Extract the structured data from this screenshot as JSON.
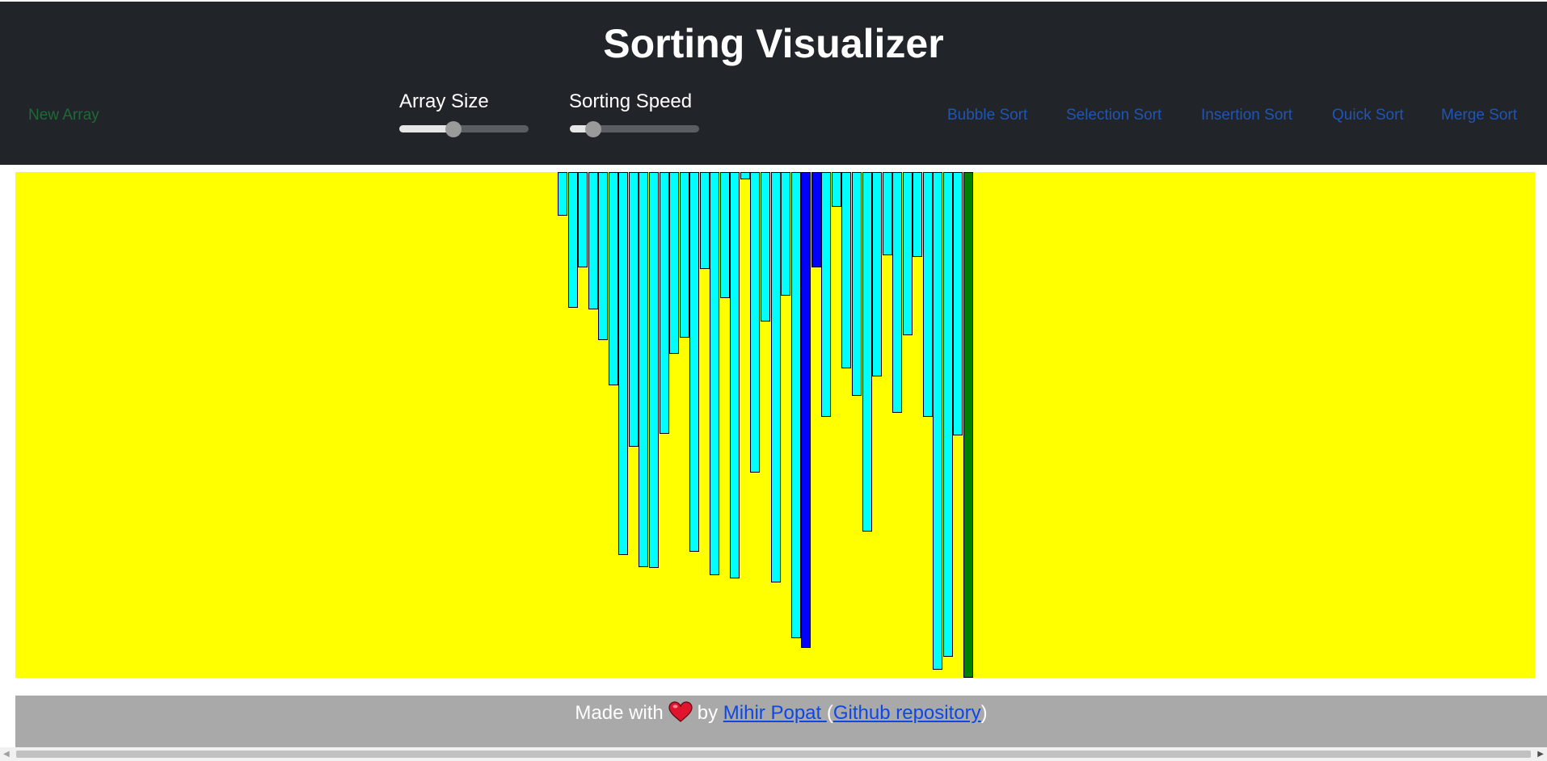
{
  "header": {
    "title": "Sorting Visualizer",
    "new_array_label": "New Array",
    "array_size_label": "Array Size",
    "array_size_level": 0.42,
    "sorting_speed_label": "Sorting Speed",
    "sorting_speed_level": 0.18,
    "algorithms": [
      "Bubble Sort",
      "Selection Sort",
      "Insertion Sort",
      "Quick Sort",
      "Merge Sort"
    ]
  },
  "visual": {
    "bar_heights_fraction": [
      0.086,
      0.268,
      0.189,
      0.272,
      0.332,
      0.422,
      0.757,
      0.543,
      0.781,
      0.783,
      0.518,
      0.359,
      0.327,
      0.751,
      0.192,
      0.797,
      0.249,
      0.804,
      0.014,
      0.595,
      0.295,
      0.812,
      0.244,
      0.921,
      0.941,
      0.189,
      0.484,
      0.068,
      0.388,
      0.443,
      0.711,
      0.404,
      0.164,
      0.476,
      0.322,
      0.168,
      0.484,
      0.984,
      0.958,
      0.52,
      1.0
    ],
    "bar_states": [
      "d",
      "d",
      "d",
      "d",
      "d",
      "d",
      "d",
      "d",
      "d",
      "d",
      "d",
      "d",
      "d",
      "d",
      "d",
      "d",
      "d",
      "d",
      "d",
      "d",
      "d",
      "d",
      "d",
      "d",
      "c",
      "c",
      "d",
      "d",
      "d",
      "d",
      "d",
      "d",
      "d",
      "d",
      "d",
      "d",
      "d",
      "d",
      "d",
      "d",
      "s"
    ],
    "colors": {
      "background": "#ffff00",
      "default": "#00ffff",
      "comparing": "#0000ff",
      "sorted": "#008000"
    }
  },
  "footer": {
    "made_with": "Made with",
    "by": "by",
    "author": "Mihir Popat ",
    "paren_open": "(",
    "repo": "Github repository",
    "paren_close": ")"
  }
}
